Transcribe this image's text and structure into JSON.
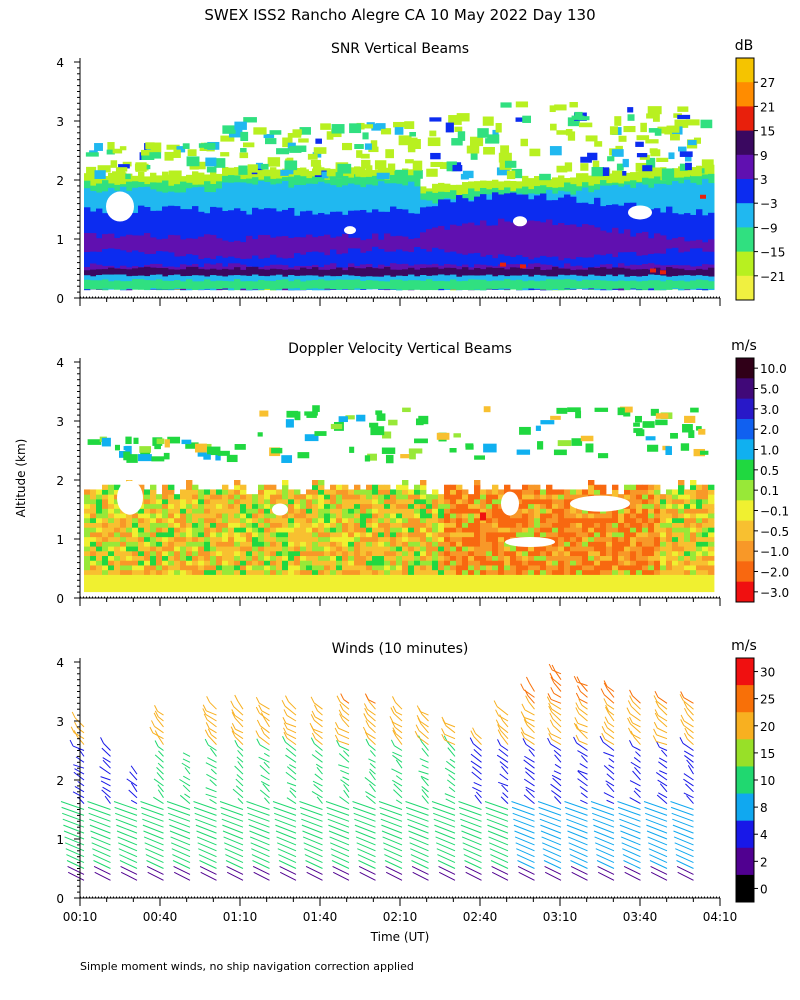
{
  "title": "SWEX ISS2 Rancho Alegre CA  10 May 2022 Day 130",
  "ylabel": "Altitude (km)",
  "xlabel": "Time (UT)",
  "footnote": "Simple moment winds, no ship navigation correction applied",
  "x_ticks": [
    "00:10",
    "00:40",
    "01:10",
    "01:40",
    "02:10",
    "02:40",
    "03:10",
    "03:40",
    "04:10"
  ],
  "y_ticks": [
    "0",
    "1",
    "2",
    "3",
    "4"
  ],
  "chart_data": [
    {
      "type": "heatmap",
      "title": "SNR Vertical Beams",
      "units": "dB",
      "x_range": [
        "00:10",
        "04:10"
      ],
      "ylim": [
        0,
        4
      ],
      "colorbar": {
        "labels": [
          "27",
          "21",
          "15",
          "9",
          "3",
          "−3",
          "−9",
          "−15",
          "−21"
        ],
        "colors": [
          "#f5c400",
          "#ff8c00",
          "#e8200c",
          "#3a0860",
          "#6010b0",
          "#0c2cf0",
          "#20b8f0",
          "#30e080",
          "#b8f020",
          "#f0f040"
        ]
      },
      "layers": [
        {
          "altitude_km": [
            0.15,
            0.4
          ],
          "snr_db": 6,
          "note": "dense low-level return"
        },
        {
          "altitude_km": [
            0.4,
            1.8
          ],
          "snr_db": -3
        },
        {
          "altitude_km": [
            1.8,
            2.2
          ],
          "snr_db": -15
        },
        {
          "altitude_km": [
            2.4,
            3.4
          ],
          "snr_db": -18,
          "note": "scattered upper patches"
        }
      ]
    },
    {
      "type": "heatmap",
      "title": "Doppler Velocity Vertical Beams",
      "units": "m/s",
      "x_range": [
        "00:10",
        "04:10"
      ],
      "ylim": [
        0,
        4
      ],
      "colorbar": {
        "labels": [
          "10.0",
          "5.0",
          "3.0",
          "2.0",
          "1.0",
          "0.5",
          "0.1",
          "−0.1",
          "−0.5",
          "−1.0",
          "−2.0",
          "−3.0"
        ],
        "colors": [
          "#300018",
          "#400878",
          "#2818c8",
          "#1060f0",
          "#10b0f0",
          "#20d840",
          "#98e838",
          "#f0f030",
          "#f8c030",
          "#f89828",
          "#f86810",
          "#f01010"
        ]
      },
      "layers": [
        {
          "altitude_km": [
            0.1,
            0.4
          ],
          "velocity_ms": -0.1
        },
        {
          "altitude_km": [
            0.4,
            2.0
          ],
          "velocity_ms": -0.8
        },
        {
          "altitude_km": [
            2.4,
            3.4
          ],
          "velocity_ms": 0.7,
          "note": "scattered"
        }
      ]
    },
    {
      "type": "wind_barbs",
      "title": "Winds (10 minutes)",
      "units": "m/s",
      "x_range": [
        "00:10",
        "04:10"
      ],
      "ylim": [
        0,
        4
      ],
      "colorbar": {
        "labels": [
          "30",
          "25",
          "20",
          "15",
          "10",
          "8",
          "4",
          "2",
          "0"
        ],
        "colors": [
          "#f01010",
          "#f87008",
          "#f8b020",
          "#98e028",
          "#20d870",
          "#10a8f0",
          "#1818e8",
          "#500090",
          "#000000"
        ]
      },
      "profiles": [
        {
          "time": "00:10",
          "top_km": 3.0
        },
        {
          "time": "00:20",
          "top_km": 2.6
        },
        {
          "time": "00:30",
          "top_km": 2.2
        },
        {
          "time": "00:40",
          "top_km": 3.2
        },
        {
          "time": "00:50",
          "top_km": 2.5
        },
        {
          "time": "01:00",
          "top_km": 3.3
        },
        {
          "time": "01:10",
          "top_km": 3.3
        },
        {
          "time": "01:20",
          "top_km": 3.3
        },
        {
          "time": "01:30",
          "top_km": 3.3
        },
        {
          "time": "01:40",
          "top_km": 3.3
        },
        {
          "time": "01:50",
          "top_km": 3.4
        },
        {
          "time": "02:00",
          "top_km": 3.4
        },
        {
          "time": "02:10",
          "top_km": 3.3
        },
        {
          "time": "02:20",
          "top_km": 3.2
        },
        {
          "time": "02:30",
          "top_km": 3.0
        },
        {
          "time": "02:40",
          "top_km": 2.8
        },
        {
          "time": "02:50",
          "top_km": 3.2
        },
        {
          "time": "03:00",
          "top_km": 3.6
        },
        {
          "time": "03:10",
          "top_km": 3.9
        },
        {
          "time": "03:20",
          "top_km": 3.7
        },
        {
          "time": "03:30",
          "top_km": 3.6
        },
        {
          "time": "03:40",
          "top_km": 3.4
        },
        {
          "time": "03:50",
          "top_km": 3.4
        },
        {
          "time": "04:00",
          "top_km": 3.4
        }
      ]
    }
  ]
}
